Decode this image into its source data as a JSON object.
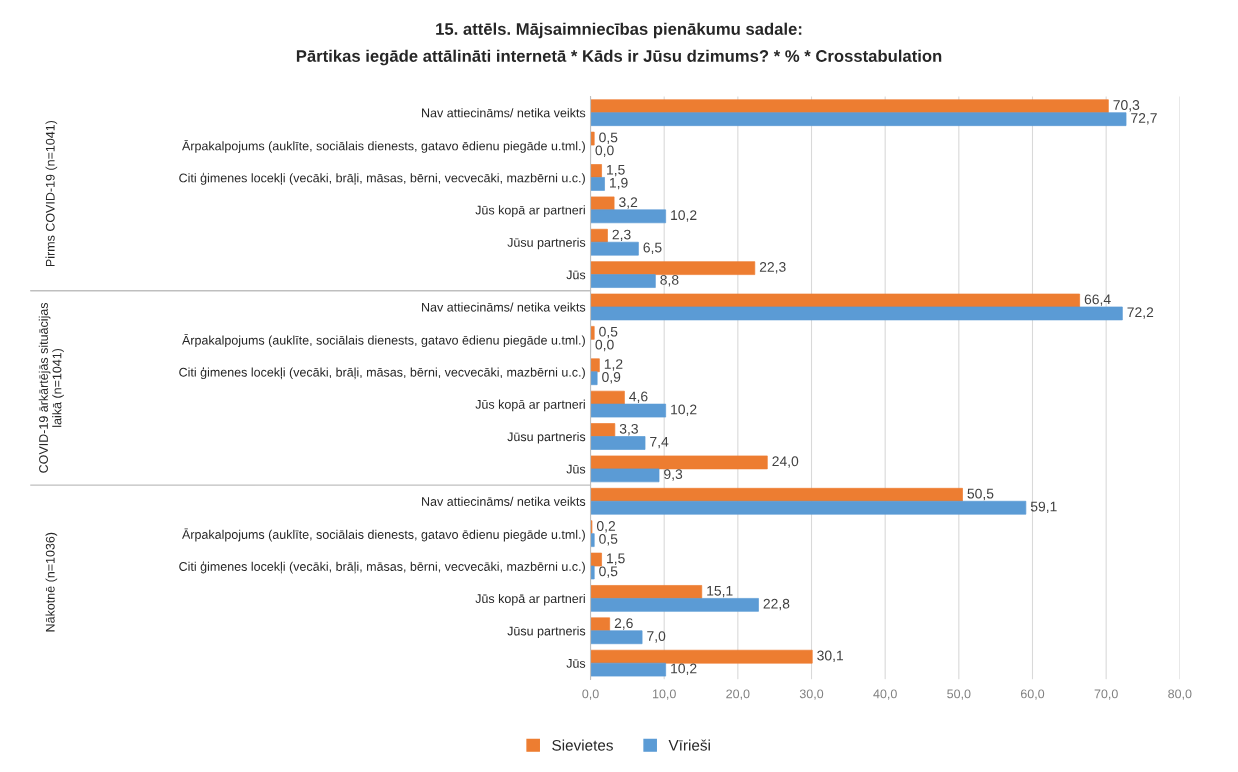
{
  "chart_data": {
    "type": "bar",
    "orientation": "horizontal",
    "title": "15. attēls. Mājsaimniecības pienākumu sadale:",
    "subtitle": "Pārtikas iegāde attālināti internetā * Kāds ir Jūsu dzimums? * % * Crosstabulation",
    "categories": [
      "Nav attiecināms/ netika veikts",
      "Ārpakalpojums (auklīte, sociālais dienests, gatavo ēdienu piegāde u.tml.)",
      "Citi ģimenes locekļi (vecāki, brāļi, māsas, bērni, vecvecāki, mazbērni u.c.)",
      "Jūs kopā ar partneri",
      "Jūsu partneris",
      "Jūs",
      "Nav attiecināms/ netika veikts",
      "Ārpakalpojums (auklīte, sociālais dienests, gatavo ēdienu piegāde u.tml.)",
      "Citi ģimenes locekļi (vecāki, brāļi, māsas, bērni, vecvecāki, mazbērni u.c.)",
      "Jūs kopā ar partneri",
      "Jūsu partneris",
      "Jūs",
      "Nav attiecināms/ netika veikts",
      "Ārpakalpojums (auklīte, sociālais dienests, gatavo ēdienu piegāde u.tml.)",
      "Citi ģimenes locekļi (vecāki, brāļi, māsas, bērni, vecvecāki, mazbērni u.c.)",
      "Jūs kopā ar partneri",
      "Jūsu partneris",
      "Jūs"
    ],
    "series": [
      {
        "name": "Sievietes",
        "color": "#ed7d31",
        "values": [
          70.3,
          0.5,
          1.5,
          3.2,
          2.3,
          22.3,
          66.4,
          0.5,
          1.2,
          4.6,
          3.3,
          24.0,
          50.5,
          0.2,
          1.5,
          15.1,
          2.6,
          30.1
        ],
        "value_labels": [
          "70,3",
          "0,5",
          "1,5",
          "3,2",
          "2,3",
          "22,3",
          "66,4",
          "0,5",
          "1,2",
          "4,6",
          "3,3",
          "24,0",
          "50,5",
          "0,2",
          "1,5",
          "15,1",
          "2,6",
          "30,1"
        ]
      },
      {
        "name": "Vīrieši",
        "color": "#5b9bd5",
        "values": [
          72.7,
          0.0,
          1.9,
          10.2,
          6.5,
          8.8,
          72.2,
          0.0,
          0.9,
          10.2,
          7.4,
          9.3,
          59.1,
          0.5,
          0.5,
          22.8,
          7.0,
          10.2
        ],
        "value_labels": [
          "72,7",
          "0,0",
          "1,9",
          "10,2",
          "6,5",
          "8,8",
          "72,2",
          "0,0",
          "0,9",
          "10,2",
          "7,4",
          "9,3",
          "59,1",
          "0,5",
          "0,5",
          "22,8",
          "7,0",
          "10,2"
        ]
      }
    ],
    "annotations": [
      "Pirms COVID-19 (n=1041)",
      "COVID-19 ārkārtējās situācijas\nlaikā (n=1041)",
      "Nākotnē (n=1036)"
    ],
    "xlim": [
      0,
      80
    ],
    "xticks": [
      {
        "value": 0,
        "label": "0,0"
      },
      {
        "value": 10,
        "label": "10,0"
      },
      {
        "value": 20,
        "label": "20,0"
      },
      {
        "value": 30,
        "label": "30,0"
      },
      {
        "value": 40,
        "label": "40,0"
      },
      {
        "value": 50,
        "label": "50,0"
      },
      {
        "value": 60,
        "label": "60,0"
      },
      {
        "value": 70,
        "label": "70,0"
      },
      {
        "value": 80,
        "label": "80,0"
      }
    ],
    "grid": "x",
    "legend": "bottom"
  }
}
